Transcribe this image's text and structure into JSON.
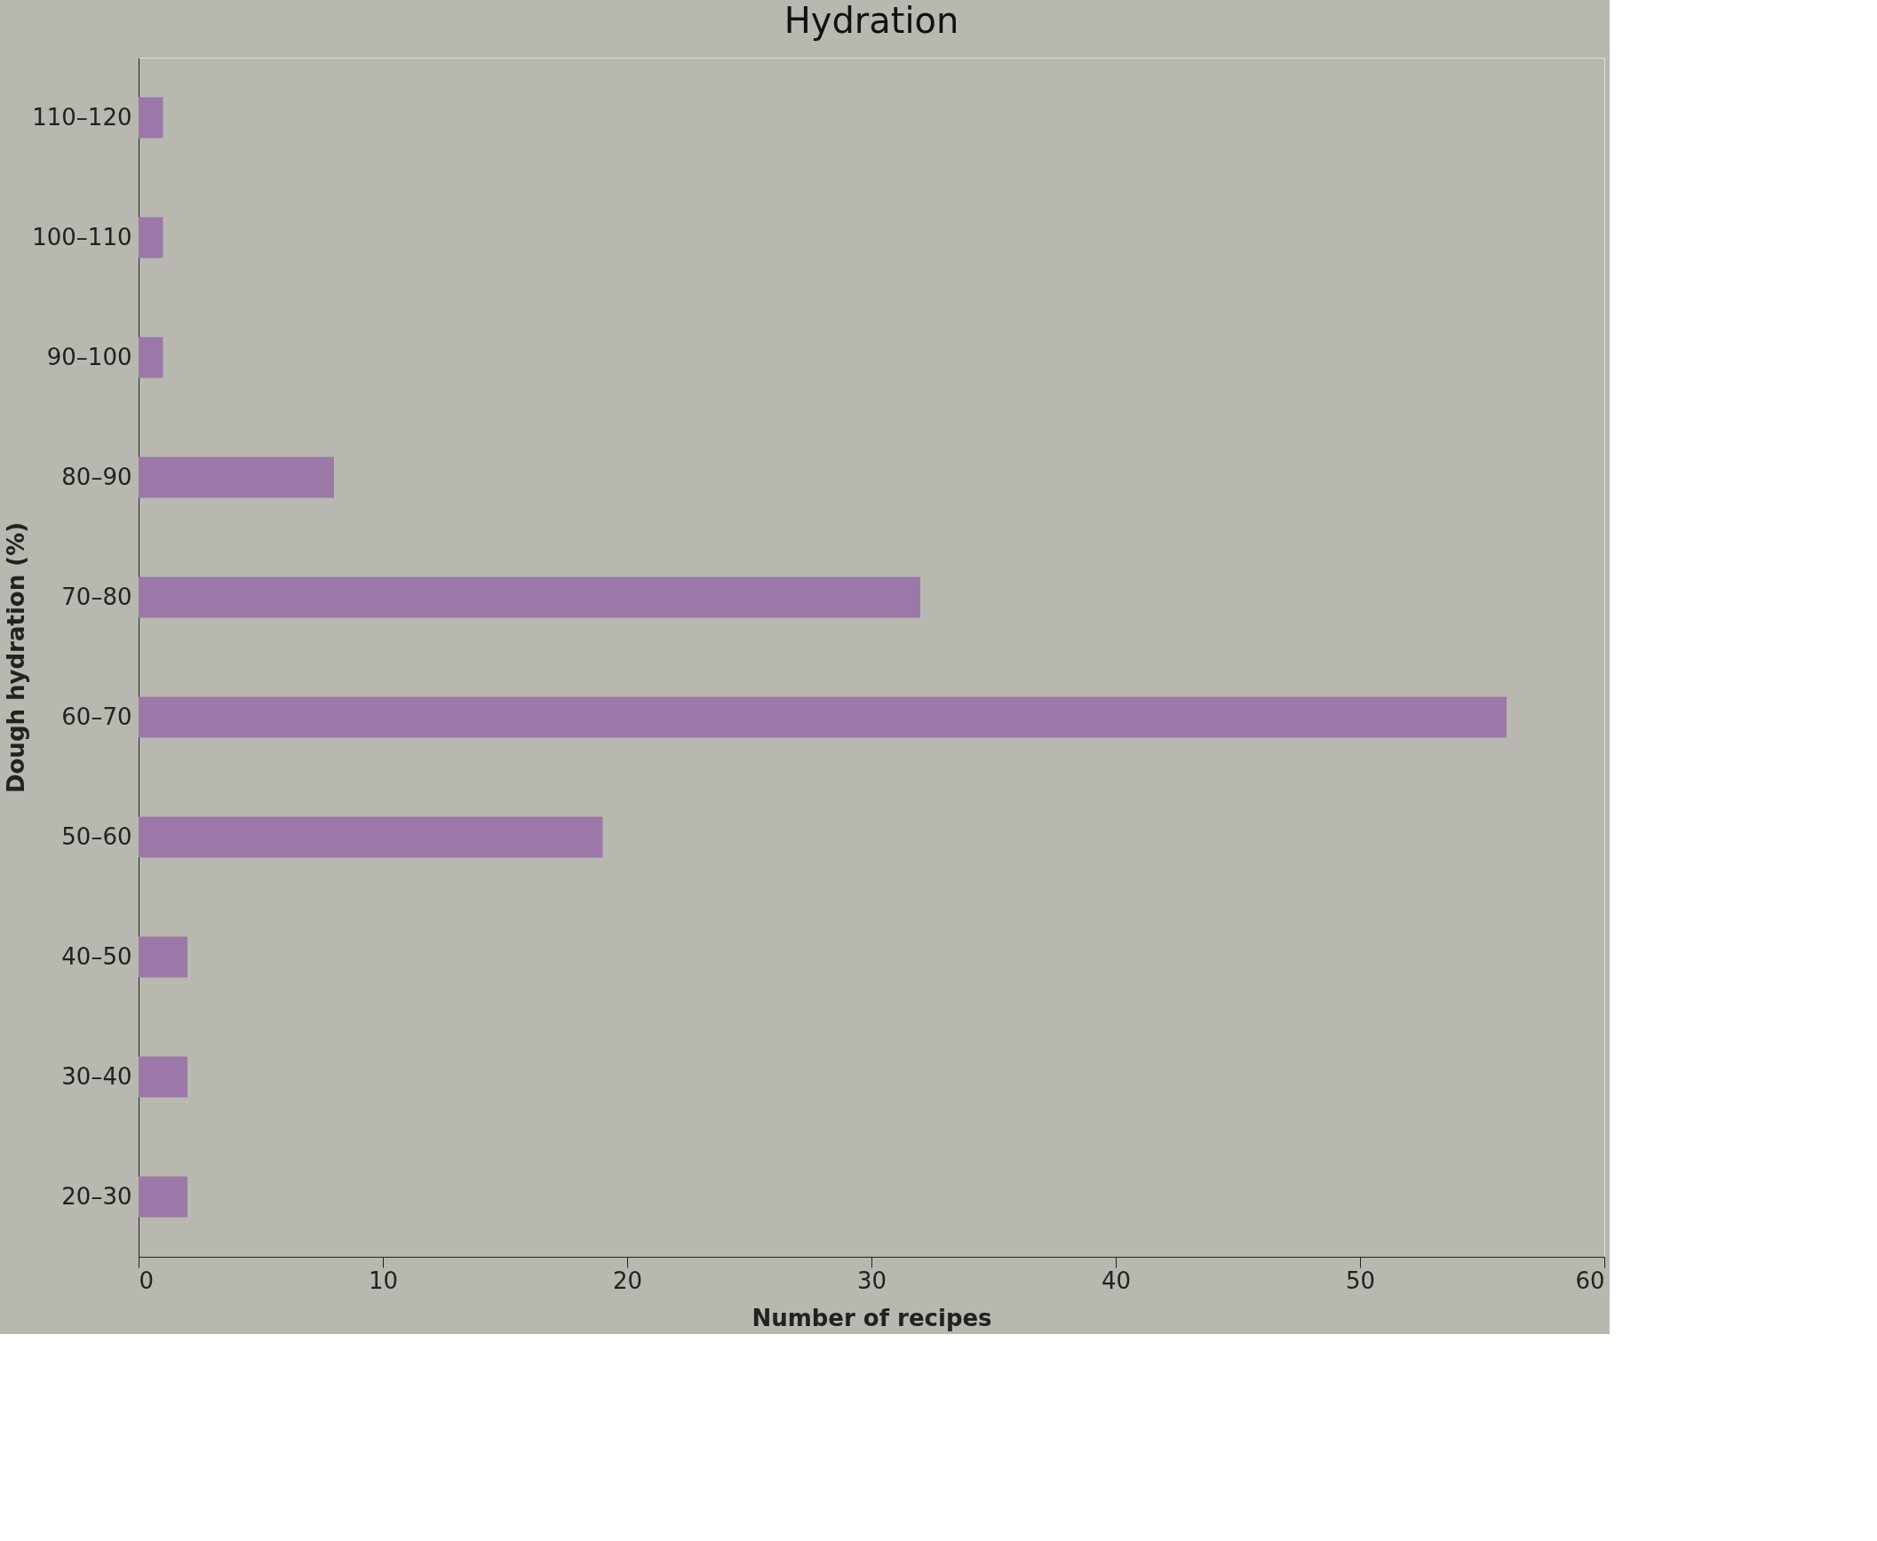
{
  "chart_data": {
    "type": "bar",
    "orientation": "horizontal",
    "title": "Hydration",
    "xlabel": "Number of recipes",
    "ylabel": "Dough hydration (%)",
    "categories": [
      "110–120",
      "100–110",
      "90–100",
      "80–90",
      "70–80",
      "60–70",
      "50–60",
      "40–50",
      "30–40",
      "20–30"
    ],
    "values": [
      1,
      1,
      1,
      8,
      32,
      56,
      19,
      2,
      2,
      2
    ],
    "color": "#9b78a8",
    "xlim": [
      0,
      60
    ],
    "xticks": [
      0,
      10,
      20,
      30,
      40,
      50,
      60
    ],
    "grid": false
  }
}
